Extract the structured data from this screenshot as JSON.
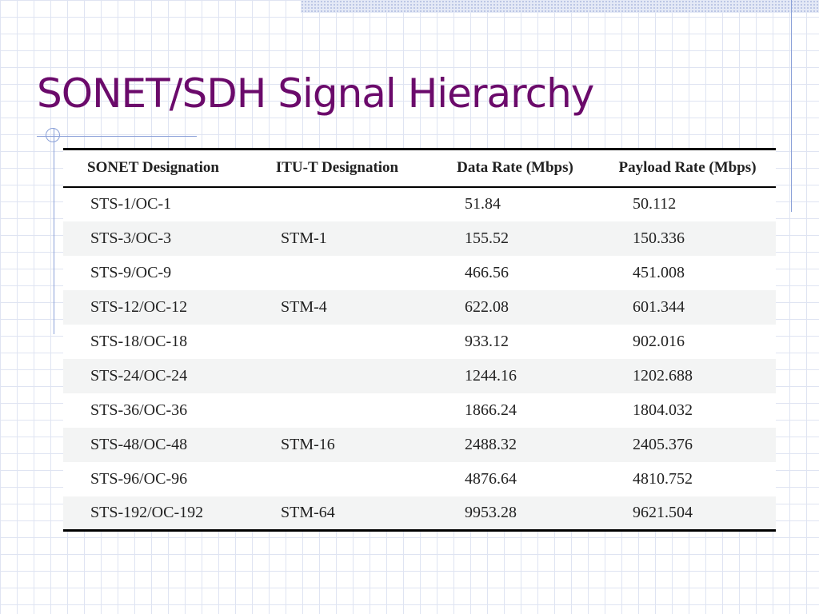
{
  "slide": {
    "title": "SONET/SDH Signal Hierarchy"
  },
  "table": {
    "headers": [
      "SONET Designation",
      "ITU-T Designation",
      "Data Rate (Mbps)",
      "Payload Rate (Mbps)"
    ],
    "rows": [
      {
        "sonet": "STS-1/OC-1",
        "itu": "",
        "data_rate": "51.84",
        "payload_rate": "50.112"
      },
      {
        "sonet": "STS-3/OC-3",
        "itu": "STM-1",
        "data_rate": "155.52",
        "payload_rate": "150.336"
      },
      {
        "sonet": "STS-9/OC-9",
        "itu": "",
        "data_rate": "466.56",
        "payload_rate": "451.008"
      },
      {
        "sonet": "STS-12/OC-12",
        "itu": "STM-4",
        "data_rate": "622.08",
        "payload_rate": "601.344"
      },
      {
        "sonet": "STS-18/OC-18",
        "itu": "",
        "data_rate": "933.12",
        "payload_rate": "902.016"
      },
      {
        "sonet": "STS-24/OC-24",
        "itu": "",
        "data_rate": "1244.16",
        "payload_rate": "1202.688"
      },
      {
        "sonet": "STS-36/OC-36",
        "itu": "",
        "data_rate": "1866.24",
        "payload_rate": "1804.032"
      },
      {
        "sonet": "STS-48/OC-48",
        "itu": "STM-16",
        "data_rate": "2488.32",
        "payload_rate": "2405.376"
      },
      {
        "sonet": "STS-96/OC-96",
        "itu": "",
        "data_rate": "4876.64",
        "payload_rate": "4810.752"
      },
      {
        "sonet": "STS-192/OC-192",
        "itu": "STM-64",
        "data_rate": "9953.28",
        "payload_rate": "9621.504"
      }
    ]
  },
  "colors": {
    "title": "#6b0a6b",
    "rule_accent": "#8aa0d8",
    "grid": "#dfe4f2",
    "stripe": "#f3f4f4"
  }
}
